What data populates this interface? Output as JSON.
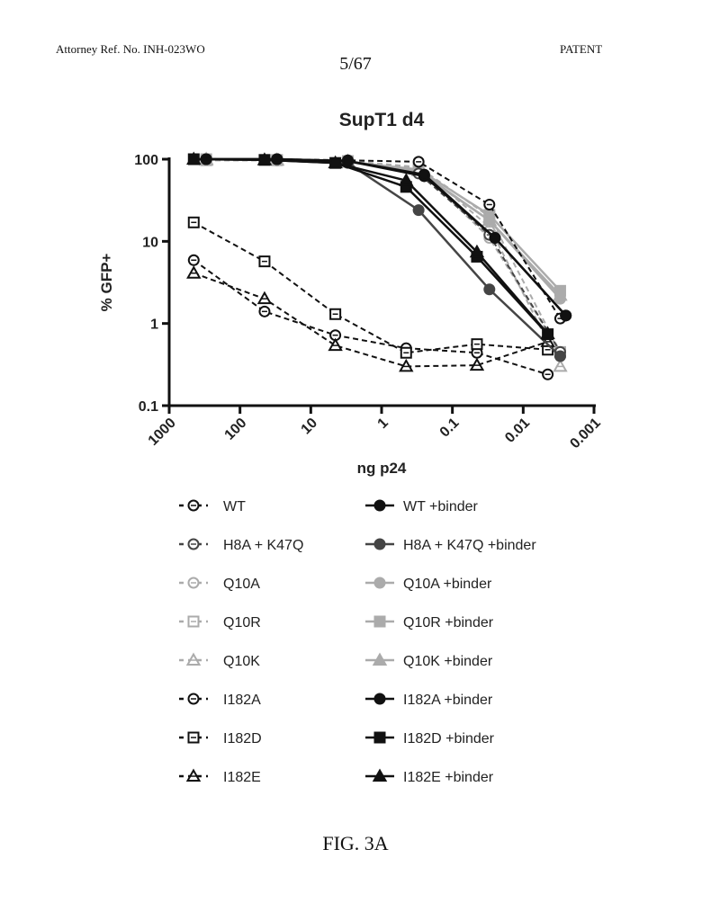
{
  "header": {
    "attorney_ref": "Attorney Ref. No. INH-023WO",
    "label": "PATENT",
    "page": "5/67"
  },
  "figure_label": "FIG. 3A",
  "chart_data": {
    "type": "line",
    "title": "SupT1 d4",
    "xlabel": "ng p24",
    "ylabel": "% GFP+",
    "x_scale": "log",
    "x_reversed": true,
    "xlim": [
      1000,
      0.001
    ],
    "y_scale": "log",
    "ylim": [
      0.1,
      100
    ],
    "x_ticks": [
      "1000",
      "100",
      "10",
      "1",
      "0.1",
      "0.01",
      "0.001"
    ],
    "y_ticks": [
      "0.1",
      "1",
      "10",
      "100"
    ],
    "grid": false,
    "legend_placement": "bottom",
    "colors": {
      "black": "#111111",
      "dark_gray": "#454545",
      "light_gray": "#ababab"
    },
    "series": [
      {
        "name": "WT",
        "color": "black",
        "marker": "circle-open",
        "line": "dashed",
        "x": [
          300,
          30,
          3,
          0.3,
          0.03,
          0.003
        ],
        "y": [
          100,
          100,
          97,
          93,
          28,
          1.15
        ]
      },
      {
        "name": "H8A + K47Q",
        "color": "dark_gray",
        "marker": "circle-open",
        "line": "dashed",
        "x": [
          300,
          30,
          3,
          0.3,
          0.03,
          0.003
        ],
        "y": [
          100,
          100,
          95,
          67,
          12,
          0.45
        ]
      },
      {
        "name": "Q10A",
        "color": "light_gray",
        "marker": "circle-open",
        "line": "dashed",
        "x": [
          300,
          30,
          3,
          0.3,
          0.03,
          0.003
        ],
        "y": [
          98,
          96,
          95,
          75,
          11,
          0.45
        ]
      },
      {
        "name": "Q10R",
        "color": "light_gray",
        "marker": "square-open",
        "line": "dashed",
        "x": [
          300,
          30,
          3,
          0.3,
          0.03,
          0.003
        ],
        "y": [
          97,
          97,
          95,
          80,
          20,
          0.45
        ]
      },
      {
        "name": "Q10K",
        "color": "light_gray",
        "marker": "triangle-open",
        "line": "dashed",
        "x": [
          300,
          30,
          3,
          0.3,
          0.03,
          0.003
        ],
        "y": [
          97,
          97,
          95,
          80,
          15,
          0.3
        ]
      },
      {
        "name": "I182A",
        "color": "black",
        "marker": "circle-open",
        "line": "dashed",
        "x": [
          450,
          45,
          4.5,
          0.45,
          0.045,
          0.0045
        ],
        "y": [
          5.9,
          1.4,
          0.72,
          0.5,
          0.44,
          0.24
        ]
      },
      {
        "name": "I182D",
        "color": "black",
        "marker": "square-open",
        "line": "dashed",
        "x": [
          450,
          45,
          4.5,
          0.45,
          0.045,
          0.0045
        ],
        "y": [
          17,
          5.7,
          1.3,
          0.44,
          0.56,
          0.48
        ]
      },
      {
        "name": "I182E",
        "color": "black",
        "marker": "triangle-open",
        "line": "dashed",
        "x": [
          450,
          45,
          4.5,
          0.45,
          0.045,
          0.0045
        ],
        "y": [
          4.1,
          2.0,
          0.54,
          0.3,
          0.31,
          0.6
        ]
      },
      {
        "name": "WT +binder",
        "color": "black",
        "marker": "circle-filled",
        "line": "solid",
        "x": [
          300,
          30,
          3,
          0.25,
          0.025,
          0.0025
        ],
        "y": [
          100,
          100,
          95,
          62,
          11,
          1.25
        ]
      },
      {
        "name": "H8A + K47Q +binder",
        "color": "dark_gray",
        "marker": "circle-filled",
        "line": "solid",
        "x": [
          300,
          30,
          3,
          0.3,
          0.03,
          0.003
        ],
        "y": [
          100,
          100,
          90,
          24,
          2.6,
          0.4
        ]
      },
      {
        "name": "Q10A +binder",
        "color": "light_gray",
        "marker": "circle-filled",
        "line": "solid",
        "x": [
          300,
          30,
          3,
          0.3,
          0.03,
          0.003
        ],
        "y": [
          100,
          98,
          93,
          70,
          18,
          2
        ]
      },
      {
        "name": "Q10R +binder",
        "color": "light_gray",
        "marker": "square-filled",
        "line": "solid",
        "x": [
          300,
          30,
          3,
          0.3,
          0.03,
          0.003
        ],
        "y": [
          100,
          98,
          93,
          75,
          21,
          2.5
        ]
      },
      {
        "name": "Q10K +binder",
        "color": "light_gray",
        "marker": "triangle-filled",
        "line": "solid",
        "x": [
          300,
          30,
          3,
          0.3,
          0.03,
          0.003
        ],
        "y": [
          100,
          98,
          93,
          72,
          18,
          2.2
        ]
      },
      {
        "name": "I182A +binder",
        "color": "black",
        "marker": "circle-filled",
        "line": "solid",
        "x": [
          300,
          30,
          3,
          0.25,
          0.025,
          0.0025
        ],
        "y": [
          100,
          100,
          95,
          65,
          11,
          1.25
        ]
      },
      {
        "name": "I182D +binder",
        "color": "black",
        "marker": "square-filled",
        "line": "solid",
        "x": [
          450,
          45,
          4.5,
          0.45,
          0.045,
          0.0045
        ],
        "y": [
          100,
          98,
          90,
          46,
          6.5,
          0.74
        ]
      },
      {
        "name": "I182E +binder",
        "color": "black",
        "marker": "triangle-filled",
        "line": "solid",
        "x": [
          450,
          45,
          4.5,
          0.45,
          0.045,
          0.0045
        ],
        "y": [
          100,
          98,
          90,
          55,
          7.4,
          0.75
        ]
      }
    ]
  }
}
